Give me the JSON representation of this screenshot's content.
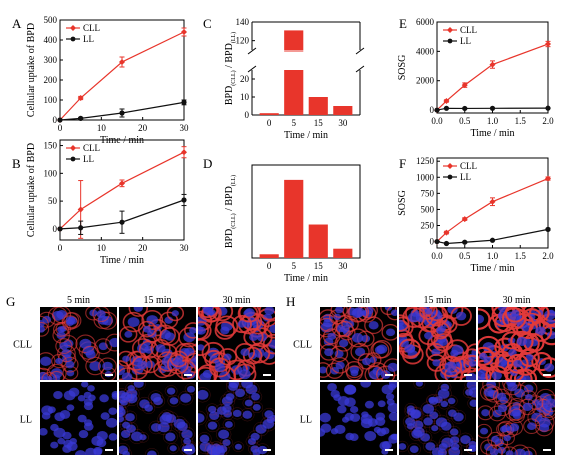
{
  "chart_data": [
    {
      "panel": "A",
      "type": "line",
      "xlabel": "Time / min",
      "ylabel": "Cellular uptake of BPD",
      "xlim": [
        0,
        30
      ],
      "ylim": [
        0,
        500
      ],
      "xticks": [
        0,
        10,
        20,
        30
      ],
      "yticks": [
        0,
        100,
        200,
        300,
        400,
        500
      ],
      "legend": "top-left",
      "series": [
        {
          "name": "CLL",
          "color": "#e8352b",
          "x": [
            0,
            5,
            15,
            30
          ],
          "y": [
            0,
            110,
            290,
            440
          ],
          "err": [
            0,
            8,
            25,
            20
          ]
        },
        {
          "name": "LL",
          "color": "#111111",
          "x": [
            0,
            5,
            15,
            30
          ],
          "y": [
            0,
            8,
            35,
            88
          ],
          "err": [
            0,
            5,
            20,
            12
          ]
        }
      ]
    },
    {
      "panel": "B",
      "type": "line",
      "xlabel": "Time / min",
      "ylabel": "Cellular uptake of BPD",
      "xlim": [
        0,
        30
      ],
      "ylim": [
        -20,
        160
      ],
      "xticks": [
        0,
        10,
        20,
        30
      ],
      "yticks": [
        0,
        50,
        100,
        150
      ],
      "legend": "top-left",
      "series": [
        {
          "name": "CLL",
          "color": "#e8352b",
          "x": [
            0,
            5,
            15,
            30
          ],
          "y": [
            0,
            35,
            82,
            138
          ],
          "err": [
            0,
            52,
            6,
            10
          ]
        },
        {
          "name": "LL",
          "color": "#111111",
          "x": [
            0,
            5,
            15,
            30
          ],
          "y": [
            0,
            2,
            12,
            52
          ],
          "err": [
            0,
            12,
            20,
            10
          ]
        }
      ]
    },
    {
      "panel": "C",
      "type": "bar",
      "ylabel_main": "BPD",
      "ylabel_sub1": "(CLL)",
      "ylabel_mid": " / BPD",
      "ylabel_sub2": "(LL)",
      "xlabel": "Time / min",
      "categories": [
        "0",
        "5",
        "15",
        "30"
      ],
      "values": [
        1,
        131,
        10,
        5
      ],
      "color": "#e8352b",
      "axis_break": true,
      "lower_range": [
        0,
        25
      ],
      "upper_range": [
        110,
        140
      ],
      "yticks_lower": [
        0,
        10,
        20
      ],
      "yticks_upper": [
        120,
        140
      ]
    },
    {
      "panel": "D",
      "type": "bar",
      "ylabel_main": "BPD",
      "ylabel_sub1": "(CLL)",
      "ylabel_mid": " / BPD",
      "ylabel_sub2": "(LL)",
      "xlabel": "Time / min",
      "categories": [
        "0",
        "5",
        "15",
        "30"
      ],
      "values": [
        1,
        21,
        9,
        2.5
      ],
      "color": "#e8352b",
      "ylim": [
        0,
        25
      ]
    },
    {
      "panel": "E",
      "type": "line",
      "xlabel": "Time / min",
      "ylabel": "SOSG",
      "xlim": [
        0,
        2.0
      ],
      "ylim": [
        -200,
        6000
      ],
      "xticks": [
        0.0,
        0.5,
        1.0,
        1.5,
        2.0
      ],
      "xticklabels": [
        "0.0",
        "0.5",
        "1.0",
        "1.5",
        "2.0"
      ],
      "yticks": [
        0,
        2000,
        4000,
        6000
      ],
      "legend": "top-left",
      "series": [
        {
          "name": "CLL",
          "color": "#e8352b",
          "x": [
            0,
            0.17,
            0.5,
            1.0,
            2.0
          ],
          "y": [
            0,
            620,
            1700,
            3100,
            4500
          ],
          "err": [
            0,
            80,
            150,
            250,
            180
          ]
        },
        {
          "name": "LL",
          "color": "#111111",
          "x": [
            0,
            0.17,
            0.5,
            1.0,
            2.0
          ],
          "y": [
            0,
            120,
            110,
            120,
            130
          ],
          "err": [
            0,
            20,
            20,
            20,
            20
          ]
        }
      ]
    },
    {
      "panel": "F",
      "type": "line",
      "xlabel": "Time / min",
      "ylabel": "SOSG",
      "xlim": [
        0,
        2.0
      ],
      "ylim": [
        -100,
        1300
      ],
      "xticks": [
        0.0,
        0.5,
        1.0,
        1.5,
        2.0
      ],
      "xticklabels": [
        "0.0",
        "0.5",
        "1.0",
        "1.5",
        "2.0"
      ],
      "yticks": [
        0,
        250,
        500,
        750,
        1000,
        1250
      ],
      "legend": "top-left",
      "series": [
        {
          "name": "CLL",
          "color": "#e8352b",
          "x": [
            0,
            0.17,
            0.5,
            1.0,
            2.0
          ],
          "y": [
            0,
            140,
            350,
            620,
            980
          ],
          "err": [
            0,
            20,
            20,
            60,
            25
          ]
        },
        {
          "name": "LL",
          "color": "#111111",
          "x": [
            0,
            0.17,
            0.5,
            1.0,
            2.0
          ],
          "y": [
            0,
            -30,
            -10,
            20,
            190
          ],
          "err": [
            0,
            10,
            10,
            10,
            15
          ]
        }
      ]
    }
  ],
  "micrographs": [
    {
      "panel": "G",
      "cols": [
        "5 min",
        "15 min",
        "30 min"
      ],
      "rows": [
        "CLL",
        "LL"
      ],
      "red_intensity": [
        [
          0.35,
          0.6,
          0.75
        ],
        [
          0.05,
          0.08,
          0.15
        ]
      ],
      "density": [
        [
          0.6,
          0.7,
          0.7
        ],
        [
          0.9,
          0.9,
          0.9
        ]
      ]
    },
    {
      "panel": "H",
      "cols": [
        "5 min",
        "15 min",
        "30 min"
      ],
      "rows": [
        "CLL",
        "LL"
      ],
      "red_intensity": [
        [
          0.45,
          0.75,
          0.95
        ],
        [
          0.05,
          0.1,
          0.3
        ]
      ],
      "density": [
        [
          0.8,
          0.9,
          0.9
        ],
        [
          0.95,
          0.95,
          0.95
        ]
      ]
    }
  ],
  "colors": {
    "accent": "#e8352b",
    "dark": "#111111",
    "nucleus": "#3a3ad6",
    "membrane": "#e23a3a"
  }
}
